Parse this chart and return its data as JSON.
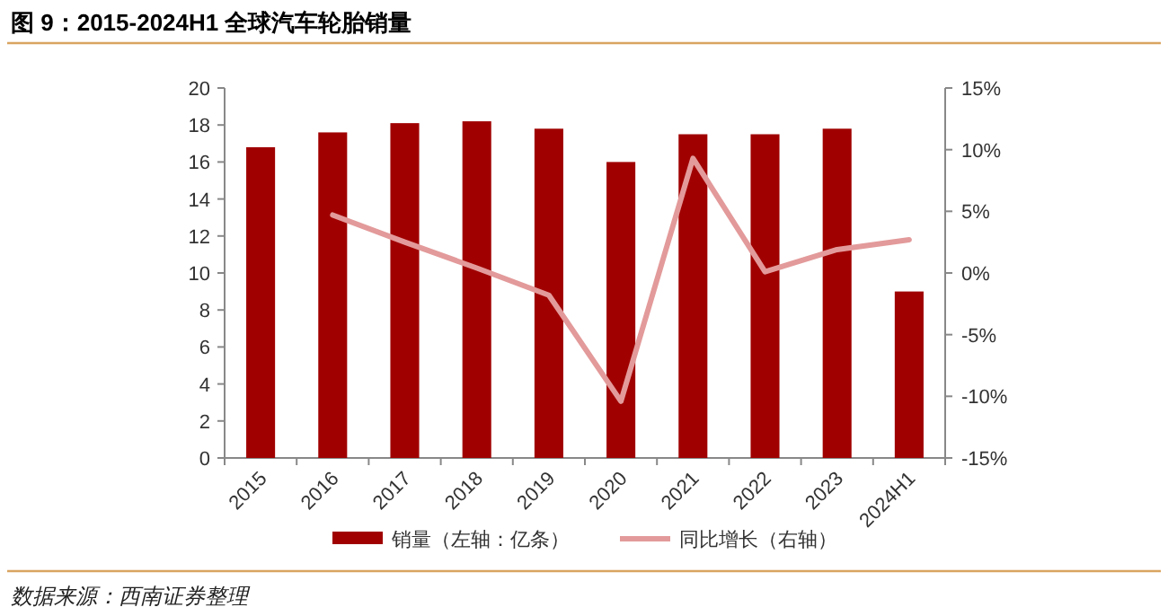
{
  "chart_data": {
    "type": "bar",
    "title": "图 9：2015-2024H1 全球汽车轮胎销量",
    "categories": [
      "2015",
      "2016",
      "2017",
      "2018",
      "2019",
      "2020",
      "2021",
      "2022",
      "2023",
      "2024H1"
    ],
    "series": [
      {
        "name": "销量（左轴：亿条）",
        "color": "#a00000",
        "values": [
          16.8,
          17.6,
          18.1,
          18.2,
          17.8,
          16.0,
          17.5,
          17.5,
          17.8,
          9.0
        ]
      },
      {
        "name": "同比增长（右轴）",
        "type": "line",
        "axis": "y2",
        "color": "#e39a9a",
        "values": [
          null,
          4.7,
          2.5,
          0.4,
          -1.8,
          -10.4,
          9.3,
          0.1,
          1.9,
          2.7
        ]
      }
    ],
    "ylim": [
      0,
      20
    ],
    "yticks": [
      0,
      2,
      4,
      6,
      8,
      10,
      12,
      14,
      16,
      18,
      20
    ],
    "y2lim": [
      -15,
      15
    ],
    "y2ticks": [
      {
        "value": -15,
        "label": "-15%"
      },
      {
        "value": -10,
        "label": "-10%"
      },
      {
        "value": -5,
        "label": "-5%"
      },
      {
        "value": 0,
        "label": "0%"
      },
      {
        "value": 5,
        "label": "5%"
      },
      {
        "value": 10,
        "label": "10%"
      },
      {
        "value": 15,
        "label": "15%"
      }
    ],
    "grid": false,
    "legend": "bottom",
    "annotations": [
      "数据来源：西南证券整理"
    ]
  }
}
